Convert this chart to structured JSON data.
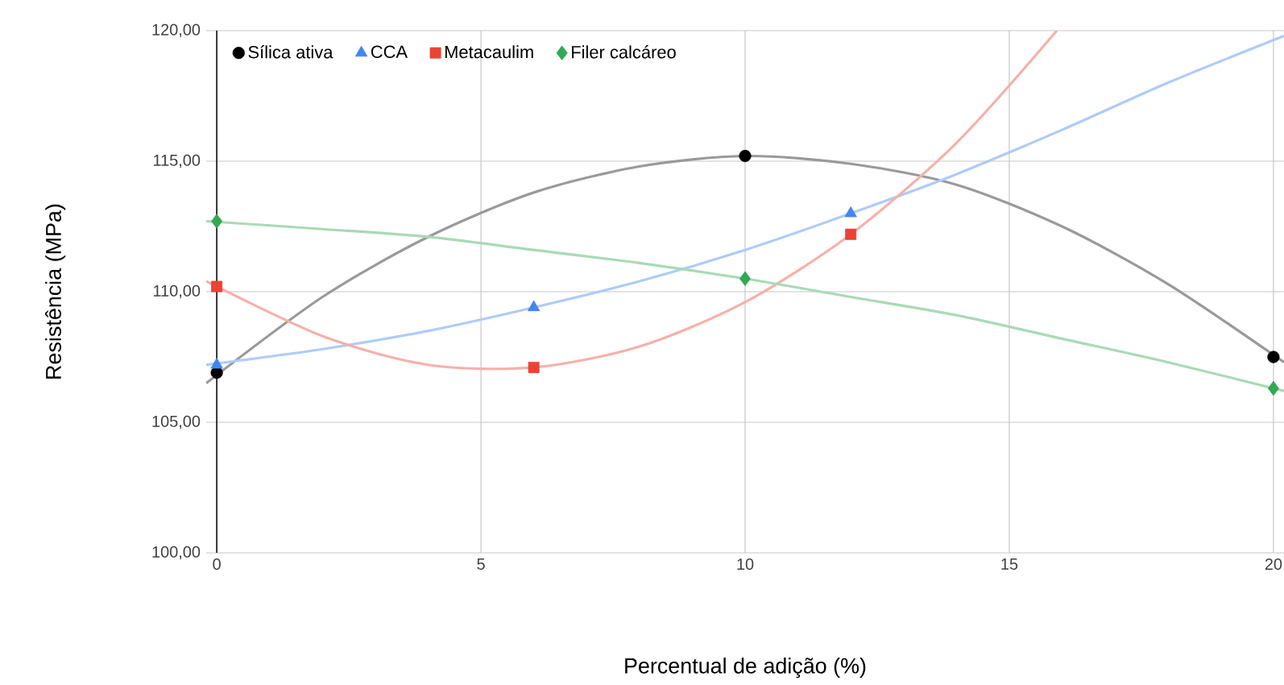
{
  "chart_data": {
    "type": "scatter",
    "xlabel": "Percentual de adição (%)",
    "ylabel": "Resistência (MPa)",
    "xlim": [
      -0.2,
      20.2
    ],
    "ylim": [
      100,
      120
    ],
    "xticks": [
      0,
      5,
      10,
      15,
      20
    ],
    "yticks": [
      {
        "value": 100,
        "label": "100,00"
      },
      {
        "value": 105,
        "label": "105,00"
      },
      {
        "value": 110,
        "label": "110,00"
      },
      {
        "value": 115,
        "label": "115,00"
      },
      {
        "value": 120,
        "label": "120,00"
      }
    ],
    "grid": true,
    "legend": "top left",
    "series": [
      {
        "type": "line",
        "color": "#9a9a9a",
        "x": [
          -0.2,
          2,
          4,
          6,
          8,
          10,
          12,
          14,
          16,
          18,
          20.2
        ],
        "values": [
          106.5,
          109.8,
          112.1,
          113.8,
          114.8,
          115.2,
          114.9,
          114.1,
          112.5,
          110.3,
          107.3
        ]
      },
      {
        "type": "line",
        "color": "#aecbfa",
        "x": [
          -0.2,
          2,
          4,
          6,
          8,
          10,
          12,
          14,
          16,
          18,
          20.2
        ],
        "values": [
          107.2,
          107.8,
          108.5,
          109.4,
          110.4,
          111.6,
          113.0,
          114.5,
          116.2,
          118.0,
          119.8
        ]
      },
      {
        "type": "line",
        "color": "#f5b1aa",
        "x": [
          -0.2,
          2,
          4,
          6,
          8,
          10,
          12,
          14,
          15.9
        ],
        "values": [
          110.4,
          108.3,
          107.2,
          107.1,
          107.9,
          109.6,
          112.2,
          115.7,
          120.0
        ]
      },
      {
        "type": "line",
        "color": "#a8dab5",
        "x": [
          -0.2,
          2,
          4,
          6,
          8,
          10,
          12,
          14,
          16,
          18,
          20.2
        ],
        "values": [
          112.7,
          112.4,
          112.1,
          111.6,
          111.1,
          110.5,
          109.8,
          109.1,
          108.2,
          107.3,
          106.2
        ]
      },
      {
        "name": "Sílica ativa",
        "type": "scatter",
        "marker": "circle",
        "color": "#000000",
        "x": [
          0,
          10,
          20
        ],
        "values": [
          106.9,
          115.2,
          107.5
        ]
      },
      {
        "name": "CCA",
        "type": "scatter",
        "marker": "triangle",
        "color": "#4285f4",
        "x": [
          0,
          6,
          12
        ],
        "values": [
          107.2,
          109.4,
          113.0
        ]
      },
      {
        "name": "Metacaulim",
        "type": "scatter",
        "marker": "square",
        "color": "#ea4335",
        "x": [
          0,
          6,
          12
        ],
        "values": [
          110.2,
          107.1,
          112.2
        ]
      },
      {
        "name": "Filer calcáreo",
        "type": "scatter",
        "marker": "diamond",
        "color": "#34a853",
        "x": [
          0,
          10,
          20
        ],
        "values": [
          112.7,
          110.5,
          106.3
        ]
      }
    ]
  }
}
